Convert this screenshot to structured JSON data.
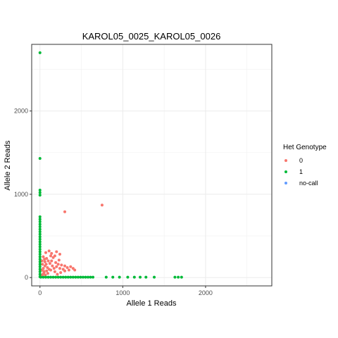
{
  "chart_data": {
    "type": "scatter",
    "title": "KAROL05_0025_KAROL05_0026",
    "xlabel": "Allele 1 Reads",
    "ylabel": "Allele 2 Reads",
    "xlim": [
      -100,
      2800
    ],
    "ylim": [
      -100,
      2800
    ],
    "x_ticks": [
      0,
      1000,
      2000
    ],
    "y_ticks": [
      0,
      1000,
      2000
    ],
    "grid": true,
    "legend": {
      "title": "Het Genotype",
      "position": "right"
    },
    "series": [
      {
        "name": "0",
        "color": "#F8766D",
        "points": [
          [
            20,
            20
          ],
          [
            35,
            40
          ],
          [
            50,
            60
          ],
          [
            65,
            30
          ],
          [
            80,
            80
          ],
          [
            95,
            50
          ],
          [
            110,
            100
          ],
          [
            40,
            110
          ],
          [
            60,
            140
          ],
          [
            90,
            120
          ],
          [
            130,
            90
          ],
          [
            150,
            140
          ],
          [
            170,
            110
          ],
          [
            120,
            170
          ],
          [
            100,
            200
          ],
          [
            60,
            190
          ],
          [
            30,
            160
          ],
          [
            20,
            90
          ],
          [
            45,
            75
          ],
          [
            75,
            160
          ],
          [
            140,
            200
          ],
          [
            160,
            240
          ],
          [
            190,
            180
          ],
          [
            200,
            130
          ],
          [
            220,
            160
          ],
          [
            240,
            110
          ],
          [
            260,
            150
          ],
          [
            280,
            100
          ],
          [
            300,
            140
          ],
          [
            330,
            120
          ],
          [
            350,
            90
          ],
          [
            370,
            130
          ],
          [
            400,
            110
          ],
          [
            420,
            90
          ],
          [
            300,
            80
          ],
          [
            250,
            60
          ],
          [
            210,
            40
          ],
          [
            180,
            70
          ],
          [
            230,
            210
          ],
          [
            180,
            260
          ],
          [
            130,
            260
          ],
          [
            80,
            230
          ],
          [
            55,
            220
          ],
          [
            40,
            250
          ],
          [
            25,
            200
          ],
          [
            70,
            300
          ],
          [
            110,
            320
          ],
          [
            140,
            290
          ],
          [
            200,
            310
          ],
          [
            240,
            280
          ],
          [
            300,
            790
          ],
          [
            750,
            870
          ]
        ]
      },
      {
        "name": "1",
        "color": "#00BA38",
        "points": [
          [
            0,
            2700
          ],
          [
            0,
            1430
          ],
          [
            0,
            1050
          ],
          [
            0,
            1020
          ],
          [
            0,
            990
          ],
          [
            0,
            730
          ],
          [
            0,
            700
          ],
          [
            0,
            670
          ],
          [
            0,
            640
          ],
          [
            0,
            610
          ],
          [
            0,
            580
          ],
          [
            0,
            550
          ],
          [
            0,
            520
          ],
          [
            0,
            490
          ],
          [
            0,
            460
          ],
          [
            0,
            430
          ],
          [
            0,
            400
          ],
          [
            0,
            370
          ],
          [
            0,
            340
          ],
          [
            0,
            310
          ],
          [
            0,
            280
          ],
          [
            0,
            250
          ],
          [
            0,
            220
          ],
          [
            0,
            190
          ],
          [
            0,
            160
          ],
          [
            0,
            130
          ],
          [
            0,
            100
          ],
          [
            0,
            70
          ],
          [
            0,
            40
          ],
          [
            0,
            10
          ],
          [
            10,
            5
          ],
          [
            40,
            5
          ],
          [
            70,
            5
          ],
          [
            100,
            5
          ],
          [
            130,
            5
          ],
          [
            160,
            5
          ],
          [
            190,
            5
          ],
          [
            220,
            5
          ],
          [
            250,
            5
          ],
          [
            280,
            5
          ],
          [
            310,
            5
          ],
          [
            340,
            5
          ],
          [
            370,
            5
          ],
          [
            400,
            5
          ],
          [
            430,
            5
          ],
          [
            460,
            5
          ],
          [
            490,
            5
          ],
          [
            520,
            5
          ],
          [
            550,
            5
          ],
          [
            580,
            5
          ],
          [
            610,
            5
          ],
          [
            640,
            5
          ],
          [
            800,
            5
          ],
          [
            880,
            5
          ],
          [
            960,
            5
          ],
          [
            1060,
            5
          ],
          [
            1140,
            5
          ],
          [
            1210,
            5
          ],
          [
            1280,
            5
          ],
          [
            1380,
            5
          ],
          [
            1630,
            5
          ],
          [
            1670,
            5
          ],
          [
            1710,
            5
          ]
        ]
      },
      {
        "name": "no-call",
        "color": "#619CFF",
        "points": []
      }
    ]
  }
}
